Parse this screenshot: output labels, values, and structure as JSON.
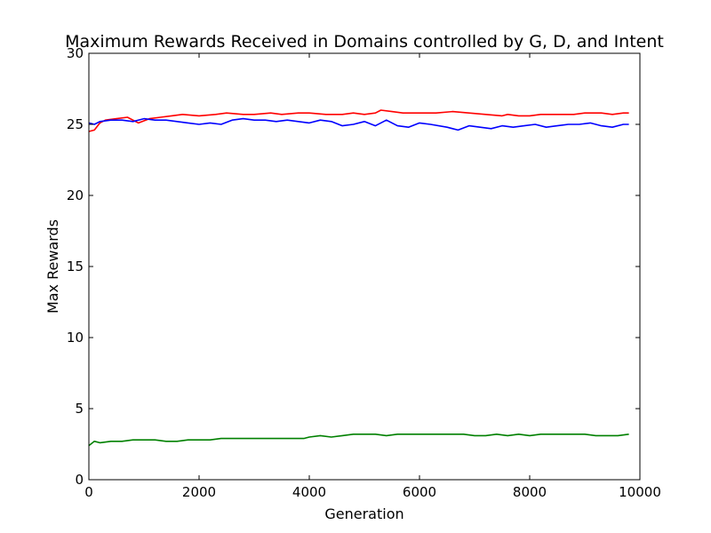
{
  "chart_data": {
    "type": "line",
    "title": "Maximum Rewards Received in Domains controlled by G, D, and Intent",
    "xlabel": "Generation",
    "ylabel": "Max Rewards",
    "xlim": [
      0,
      10000
    ],
    "ylim": [
      0,
      30
    ],
    "xticks": [
      0,
      2000,
      4000,
      6000,
      8000,
      10000
    ],
    "yticks": [
      0,
      5,
      10,
      15,
      20,
      25,
      30
    ],
    "grid": false,
    "series": [
      {
        "color": "#ff0000",
        "x": [
          0,
          100,
          200,
          300,
          500,
          700,
          900,
          1100,
          1300,
          1500,
          1700,
          2000,
          2300,
          2500,
          2800,
          3000,
          3300,
          3500,
          3800,
          4000,
          4300,
          4600,
          4800,
          5000,
          5200,
          5300,
          5500,
          5700,
          6000,
          6300,
          6600,
          6900,
          7200,
          7500,
          7600,
          7800,
          8000,
          8200,
          8500,
          8800,
          9000,
          9300,
          9500,
          9700,
          9800
        ],
        "y": [
          24.5,
          24.6,
          25.1,
          25.3,
          25.4,
          25.5,
          25.1,
          25.4,
          25.5,
          25.6,
          25.7,
          25.6,
          25.7,
          25.8,
          25.7,
          25.7,
          25.8,
          25.7,
          25.8,
          25.8,
          25.7,
          25.7,
          25.8,
          25.7,
          25.8,
          26.0,
          25.9,
          25.8,
          25.8,
          25.8,
          25.9,
          25.8,
          25.7,
          25.6,
          25.7,
          25.6,
          25.6,
          25.7,
          25.7,
          25.7,
          25.8,
          25.8,
          25.7,
          25.8,
          25.8
        ]
      },
      {
        "color": "#0000ff",
        "x": [
          0,
          100,
          200,
          400,
          600,
          800,
          1000,
          1200,
          1400,
          1600,
          1800,
          2000,
          2200,
          2400,
          2600,
          2800,
          3000,
          3200,
          3400,
          3600,
          3800,
          4000,
          4200,
          4400,
          4600,
          4800,
          5000,
          5200,
          5400,
          5600,
          5800,
          6000,
          6200,
          6500,
          6700,
          6900,
          7100,
          7300,
          7500,
          7700,
          7900,
          8100,
          8300,
          8500,
          8700,
          8900,
          9100,
          9300,
          9500,
          9700,
          9800
        ],
        "y": [
          25.1,
          25.0,
          25.2,
          25.3,
          25.3,
          25.2,
          25.4,
          25.3,
          25.3,
          25.2,
          25.1,
          25.0,
          25.1,
          25.0,
          25.3,
          25.4,
          25.3,
          25.3,
          25.2,
          25.3,
          25.2,
          25.1,
          25.3,
          25.2,
          24.9,
          25.0,
          25.2,
          24.9,
          25.3,
          24.9,
          24.8,
          25.1,
          25.0,
          24.8,
          24.6,
          24.9,
          24.8,
          24.7,
          24.9,
          24.8,
          24.9,
          25.0,
          24.8,
          24.9,
          25.0,
          25.0,
          25.1,
          24.9,
          24.8,
          25.0,
          25.0
        ]
      },
      {
        "color": "#008000",
        "x": [
          0,
          100,
          200,
          400,
          600,
          800,
          1000,
          1200,
          1400,
          1600,
          1800,
          2000,
          2200,
          2400,
          2600,
          2800,
          3000,
          3300,
          3600,
          3900,
          4000,
          4200,
          4400,
          4600,
          4800,
          5000,
          5200,
          5400,
          5600,
          5800,
          6000,
          6200,
          6500,
          6800,
          7000,
          7200,
          7400,
          7600,
          7800,
          8000,
          8200,
          8400,
          8600,
          8800,
          9000,
          9200,
          9400,
          9600,
          9800
        ],
        "y": [
          2.4,
          2.7,
          2.6,
          2.7,
          2.7,
          2.8,
          2.8,
          2.8,
          2.7,
          2.7,
          2.8,
          2.8,
          2.8,
          2.9,
          2.9,
          2.9,
          2.9,
          2.9,
          2.9,
          2.9,
          3.0,
          3.1,
          3.0,
          3.1,
          3.2,
          3.2,
          3.2,
          3.1,
          3.2,
          3.2,
          3.2,
          3.2,
          3.2,
          3.2,
          3.1,
          3.1,
          3.2,
          3.1,
          3.2,
          3.1,
          3.2,
          3.2,
          3.2,
          3.2,
          3.2,
          3.1,
          3.1,
          3.1,
          3.2
        ]
      }
    ]
  }
}
